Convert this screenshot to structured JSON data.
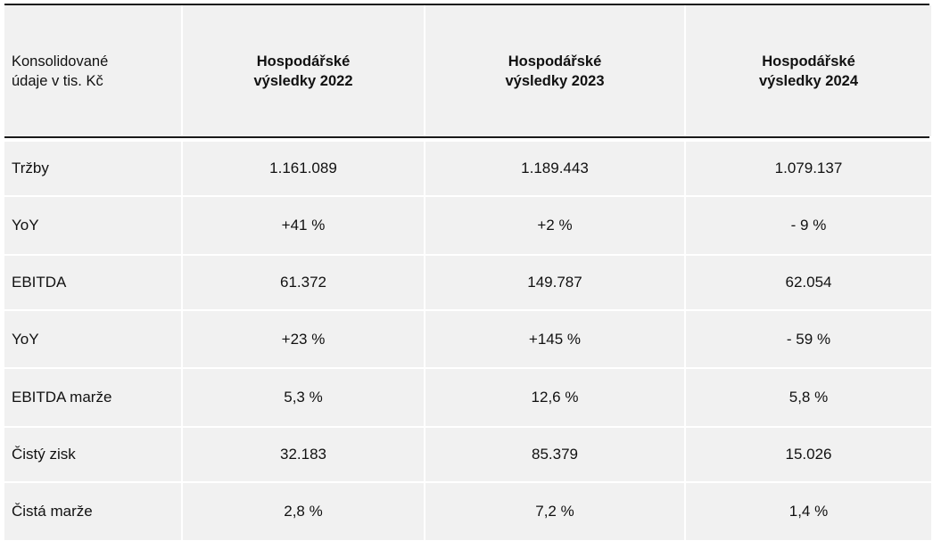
{
  "table": {
    "header": {
      "label": "Konsolidované\núdaje v tis. Kč",
      "columns": [
        "Hospodářské\nvýsledky 2022",
        "Hospodářské\nvýsledky 2023",
        "Hospodářské\nvýsledky 2024"
      ]
    },
    "rows": [
      {
        "label": "Tržby",
        "values": [
          "1.161.089",
          "1.189.443",
          "1.079.137"
        ]
      },
      {
        "label": "YoY",
        "values": [
          "+41 %",
          "+2 %",
          "- 9 %"
        ]
      },
      {
        "label": "EBITDA",
        "values": [
          "61.372",
          "149.787",
          "62.054"
        ]
      },
      {
        "label": "YoY",
        "values": [
          "+23 %",
          "+145 %",
          "- 59 %"
        ]
      },
      {
        "label": "EBITDA marže",
        "values": [
          "5,3 %",
          "12,6 %",
          "5,8 %"
        ]
      },
      {
        "label": "Čistý zisk",
        "values": [
          "32.183",
          "85.379",
          "15.026"
        ]
      },
      {
        "label": "Čistá marže",
        "values": [
          "2,8 %",
          "7,2 %",
          "1,4 %"
        ]
      }
    ]
  }
}
